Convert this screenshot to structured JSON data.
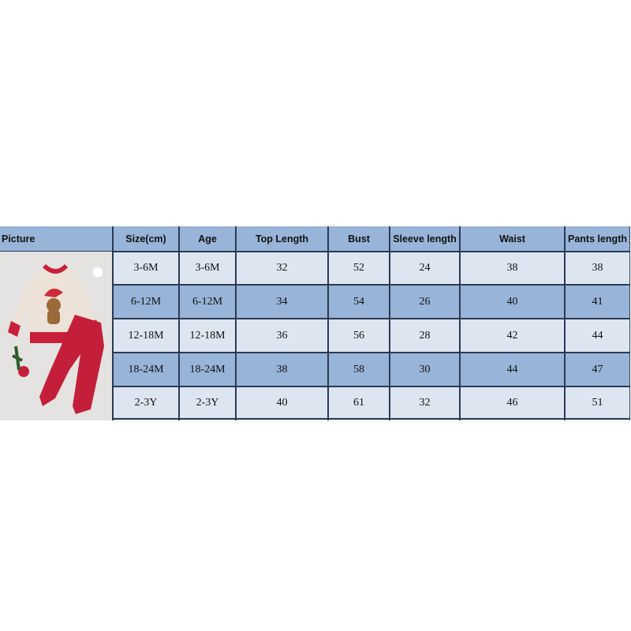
{
  "table": {
    "headers": [
      "Picture",
      "Size(cm)",
      "Age",
      "Top Length",
      "Bust",
      "Sleeve length",
      "Waist",
      "Pants length"
    ],
    "rows": [
      [
        "3-6M",
        "3-6M",
        "32",
        "52",
        "24",
        "38",
        "38"
      ],
      [
        "6-12M",
        "6-12M",
        "34",
        "54",
        "26",
        "40",
        "41"
      ],
      [
        "12-18M",
        "12-18M",
        "36",
        "56",
        "28",
        "42",
        "44"
      ],
      [
        "18-24M",
        "18-24M",
        "38",
        "58",
        "30",
        "44",
        "47"
      ],
      [
        "2-3Y",
        "2-3Y",
        "40",
        "61",
        "32",
        "46",
        "51"
      ]
    ]
  },
  "colors": {
    "header": "#98b4d8",
    "row_light": "#dde6f0",
    "row_dark": "#98b4d8",
    "garment_red": "#c8203a",
    "sweatshirt": "#ece2d8"
  }
}
